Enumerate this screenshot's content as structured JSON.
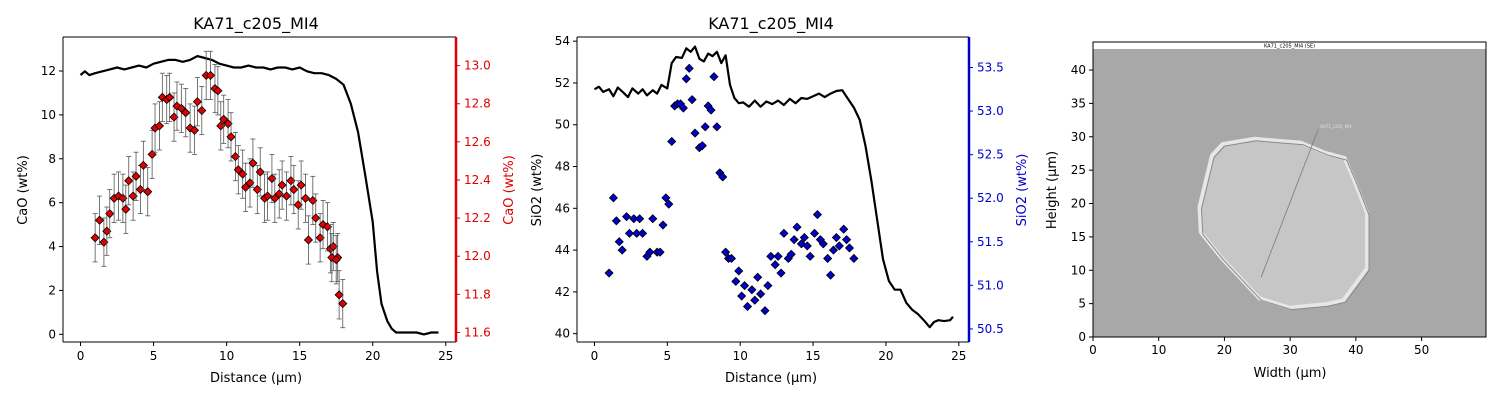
{
  "chart_data": [
    {
      "type": "line+scatter",
      "title": "KA71_c205_MI4",
      "xlabel": "Distance (µm)",
      "ylabel_left": "CaO (wt%)",
      "ylabel_right": "CaO (wt%)",
      "right_axis_color": "#e00000",
      "line_color": "#000000",
      "marker_color": "#e00000",
      "xlim": [
        -1.2,
        25.7
      ],
      "ylim_left": [
        -0.35,
        13.55
      ],
      "ylim_right": [
        11.55,
        13.15
      ],
      "xticks": [
        "0",
        "5",
        "10",
        "15",
        "20",
        "25"
      ],
      "yticks_left": [
        "0",
        "2",
        "4",
        "6",
        "8",
        "10",
        "12"
      ],
      "yticks_right": [
        "11.6",
        "11.8",
        "12.0",
        "12.2",
        "12.4",
        "12.6",
        "12.8",
        "13.0"
      ],
      "series": [
        {
          "axis": "right",
          "mode": "line",
          "x": [
            0,
            0.3,
            0.6,
            1,
            1.5,
            2,
            2.5,
            3,
            3.5,
            4,
            4.5,
            5,
            5.5,
            6,
            6.5,
            7,
            7.5,
            8,
            8.5,
            9,
            9.5,
            10,
            10.5,
            11,
            11.5,
            12,
            12.5,
            13,
            13.5,
            14,
            14.5,
            15,
            15.5,
            16,
            16.5,
            17,
            17.5,
            18,
            18.5,
            19,
            19.5,
            20,
            20.3,
            20.6,
            21,
            21.3,
            21.6,
            22,
            22.5,
            23,
            23.5,
            24,
            24.5
          ],
          "y": [
            12.95,
            12.97,
            12.95,
            12.96,
            12.97,
            12.98,
            12.99,
            12.98,
            12.99,
            13.0,
            12.99,
            13.01,
            13.02,
            13.03,
            13.03,
            13.02,
            13.03,
            13.05,
            13.04,
            13.03,
            13.01,
            13.0,
            12.99,
            12.99,
            13.0,
            12.99,
            12.99,
            12.98,
            12.99,
            12.99,
            12.98,
            12.99,
            12.97,
            12.96,
            12.96,
            12.95,
            12.93,
            12.9,
            12.8,
            12.65,
            12.42,
            12.18,
            11.92,
            11.75,
            11.66,
            11.62,
            11.6,
            11.6,
            11.6,
            11.6,
            11.59,
            11.6,
            11.6
          ]
        },
        {
          "axis": "left",
          "mode": "markers",
          "errorbars": true,
          "x": [
            1.0,
            1.3,
            1.6,
            1.8,
            2.0,
            2.3,
            2.6,
            2.9,
            3.1,
            3.3,
            3.6,
            3.8,
            4.1,
            4.3,
            4.6,
            4.9,
            5.1,
            5.4,
            5.6,
            5.9,
            6.1,
            6.4,
            6.6,
            6.9,
            7.2,
            7.5,
            7.8,
            8.0,
            8.3,
            8.6,
            8.9,
            9.2,
            9.4,
            9.6,
            9.8,
            10.1,
            10.3,
            10.6,
            10.8,
            11.1,
            11.3,
            11.6,
            11.8,
            12.1,
            12.3,
            12.6,
            12.8,
            13.1,
            13.3,
            13.6,
            13.8,
            14.1,
            14.4,
            14.6,
            14.9,
            15.1,
            15.4,
            15.6,
            15.9,
            16.1,
            16.4,
            16.6,
            16.9,
            17.1,
            17.3,
            17.6
          ],
          "y": [
            4.4,
            5.2,
            4.2,
            4.7,
            5.5,
            6.2,
            6.3,
            6.2,
            5.7,
            7.0,
            6.3,
            7.2,
            6.6,
            7.7,
            6.5,
            8.2,
            9.4,
            9.5,
            10.8,
            10.7,
            10.8,
            9.9,
            10.4,
            10.3,
            10.1,
            9.4,
            9.3,
            10.6,
            10.2,
            11.8,
            11.8,
            11.2,
            11.1,
            9.5,
            9.8,
            9.6,
            9.0,
            8.1,
            7.5,
            7.3,
            6.7,
            6.9,
            7.8,
            6.6,
            7.4,
            6.2,
            6.3,
            7.1,
            6.2,
            6.4,
            6.8,
            6.3,
            7.0,
            6.6,
            5.9,
            6.8,
            6.2,
            4.3,
            6.1,
            5.3,
            4.4,
            5.0,
            4.9,
            3.9,
            4.0,
            3.5
          ],
          "yerr": [
            1.1,
            1.1,
            1.1,
            1.1,
            1.1,
            1.1,
            1.1,
            1.1,
            1.1,
            1.1,
            1.1,
            1.1,
            1.1,
            1.1,
            1.1,
            1.1,
            1.1,
            1.1,
            1.1,
            1.1,
            1.1,
            1.1,
            1.1,
            1.1,
            1.1,
            1.1,
            1.1,
            1.1,
            1.1,
            1.1,
            1.1,
            1.1,
            1.1,
            1.1,
            1.1,
            1.1,
            1.1,
            1.1,
            1.1,
            1.1,
            1.1,
            1.1,
            1.1,
            1.1,
            1.1,
            1.1,
            1.1,
            1.1,
            1.1,
            1.1,
            1.1,
            1.1,
            1.1,
            1.1,
            1.1,
            1.1,
            1.1,
            1.1,
            1.1,
            1.1,
            1.1,
            1.1,
            1.1,
            1.1,
            1.1,
            1.1
          ]
        }
      ],
      "extra_points": {
        "x": [
          17.2,
          17.5,
          17.7,
          17.95
        ],
        "y": [
          3.5,
          3.4,
          1.8,
          1.4
        ],
        "yerr": [
          1.1,
          1.1,
          1.1,
          1.1
        ]
      }
    },
    {
      "type": "line+scatter",
      "title": "KA71_c205_MI4",
      "xlabel": "Distance (µm)",
      "ylabel_left": "SiO2 (wt%)",
      "ylabel_right": "SiO2 (wt%)",
      "right_axis_color": "#0000cc",
      "line_color": "#000000",
      "marker_color": "#0000cc",
      "xlim": [
        -1.2,
        25.7
      ],
      "ylim_left": [
        39.6,
        54.2
      ],
      "ylim_right": [
        50.35,
        53.85
      ],
      "xticks": [
        "0",
        "5",
        "10",
        "15",
        "20",
        "25"
      ],
      "yticks_left": [
        "40",
        "42",
        "44",
        "46",
        "48",
        "50",
        "52",
        "54"
      ],
      "yticks_right": [
        "50.5",
        "51.0",
        "51.5",
        "52.0",
        "52.5",
        "53.0",
        "53.5"
      ],
      "series": [
        {
          "axis": "right",
          "mode": "line",
          "x": [
            0,
            0.3,
            0.6,
            1,
            1.3,
            1.6,
            2,
            2.3,
            2.6,
            3,
            3.3,
            3.6,
            4,
            4.3,
            4.6,
            5,
            5.3,
            5.6,
            6,
            6.3,
            6.6,
            6.9,
            7.2,
            7.5,
            7.8,
            8.1,
            8.4,
            8.7,
            9.0,
            9.3,
            9.6,
            9.9,
            10.2,
            10.6,
            11,
            11.4,
            11.8,
            12.2,
            12.6,
            13,
            13.4,
            13.8,
            14.2,
            14.6,
            15,
            15.4,
            15.8,
            16.2,
            16.6,
            17,
            17.4,
            17.8,
            18.2,
            18.6,
            19,
            19.4,
            19.8,
            20.2,
            20.6,
            21,
            21.4,
            21.8,
            22.2,
            22.6,
            23,
            23.3,
            23.6,
            24,
            24.4,
            24.6
          ],
          "y": [
            53.25,
            53.28,
            53.22,
            53.25,
            53.17,
            53.27,
            53.21,
            53.16,
            53.26,
            53.2,
            53.25,
            53.18,
            53.24,
            53.2,
            53.3,
            53.26,
            53.55,
            53.62,
            53.61,
            53.72,
            53.68,
            53.74,
            53.6,
            53.57,
            53.66,
            53.63,
            53.68,
            53.55,
            53.64,
            53.3,
            53.15,
            53.09,
            53.1,
            53.05,
            53.12,
            53.05,
            53.11,
            53.08,
            53.12,
            53.07,
            53.14,
            53.09,
            53.15,
            53.14,
            53.17,
            53.2,
            53.16,
            53.2,
            53.23,
            53.24,
            53.14,
            53.04,
            52.9,
            52.6,
            52.2,
            51.75,
            51.3,
            51.05,
            50.95,
            50.95,
            50.8,
            50.72,
            50.67,
            50.6,
            50.52,
            50.58,
            50.6,
            50.59,
            50.6,
            50.64
          ]
        },
        {
          "axis": "left",
          "mode": "markers",
          "errorbars": true,
          "x": [
            1.0,
            1.3,
            1.5,
            1.7,
            1.9,
            2.2,
            2.4,
            2.7,
            2.9,
            3.1,
            3.3,
            3.6,
            3.8,
            4.0,
            4.3,
            4.5,
            4.7,
            4.9,
            5.1,
            5.3,
            5.5,
            5.7,
            5.9,
            6.1,
            6.3,
            6.5,
            6.7,
            6.9,
            7.2,
            7.4,
            7.6,
            7.8,
            8.0,
            8.2,
            8.4,
            8.6,
            8.8,
            9.0,
            9.2,
            9.4,
            9.7,
            9.9,
            10.1,
            10.3,
            10.5,
            10.8,
            11.0,
            11.2,
            11.4,
            11.7,
            11.9,
            12.1,
            12.4,
            12.6,
            12.8,
            13.0,
            13.3,
            13.5,
            13.7,
            13.9,
            14.2,
            14.4,
            14.6,
            14.8,
            15.1,
            15.3,
            15.5,
            15.7,
            16.0,
            16.2,
            16.4,
            16.6,
            16.8,
            17.1,
            17.3,
            17.5,
            17.8
          ],
          "y": [
            42.9,
            46.5,
            45.4,
            44.4,
            44.0,
            45.6,
            44.8,
            45.5,
            44.8,
            45.5,
            44.8,
            43.7,
            43.9,
            45.5,
            43.9,
            43.9,
            45.2,
            46.5,
            46.2,
            49.2,
            50.9,
            51.0,
            51.0,
            50.8,
            52.2,
            52.7,
            51.2,
            49.6,
            48.9,
            49.0,
            49.9,
            50.9,
            50.7,
            52.3,
            49.9,
            47.7,
            47.5,
            43.9,
            43.6,
            43.6,
            42.5,
            43.0,
            41.8,
            42.3,
            41.3,
            42.1,
            41.6,
            42.7,
            41.9,
            41.1,
            42.3,
            43.7,
            43.3,
            43.7,
            42.9,
            44.8,
            43.6,
            43.8,
            44.5,
            45.1,
            44.3,
            44.6,
            44.2,
            43.7,
            44.8,
            45.7,
            44.5,
            44.3,
            43.6,
            42.8,
            44.0,
            44.6,
            44.2,
            45.0,
            44.5,
            44.1,
            43.6
          ]
        }
      ]
    }
  ],
  "image_panel": {
    "type": "image",
    "xlabel": "Width (µm)",
    "ylabel": "Height (µm)",
    "xlim": [
      0,
      59.8
    ],
    "ylim": [
      0,
      44.2
    ],
    "xticks": [
      "0",
      "10",
      "20",
      "30",
      "40",
      "50"
    ],
    "yticks": [
      "0",
      "5",
      "10",
      "15",
      "20",
      "25",
      "30",
      "35",
      "40"
    ],
    "header_text": "KA71_c205_MI4 (SE)",
    "annotation_text": "KA71_c205_MI4",
    "background_color": "#a8a8a8",
    "inclusion_color": "#c6c6c6",
    "rim_color": "#e6e6e6",
    "outline": [
      [
        16.2,
        19.5
      ],
      [
        18.1,
        27.2
      ],
      [
        19.7,
        28.9
      ],
      [
        24.5,
        29.7
      ],
      [
        31.7,
        29.1
      ],
      [
        35.3,
        27.6
      ],
      [
        38.3,
        26.8
      ],
      [
        39.9,
        23.1
      ],
      [
        41.7,
        18.6
      ],
      [
        41.7,
        10.3
      ],
      [
        38.1,
        5.5
      ],
      [
        35.4,
        4.9
      ],
      [
        29.9,
        4.4
      ],
      [
        25.3,
        5.8
      ],
      [
        19.5,
        11.9
      ],
      [
        16.4,
        15.7
      ]
    ],
    "profile_line": [
      [
        25.6,
        9.0
      ],
      [
        34.3,
        31.2
      ]
    ]
  }
}
